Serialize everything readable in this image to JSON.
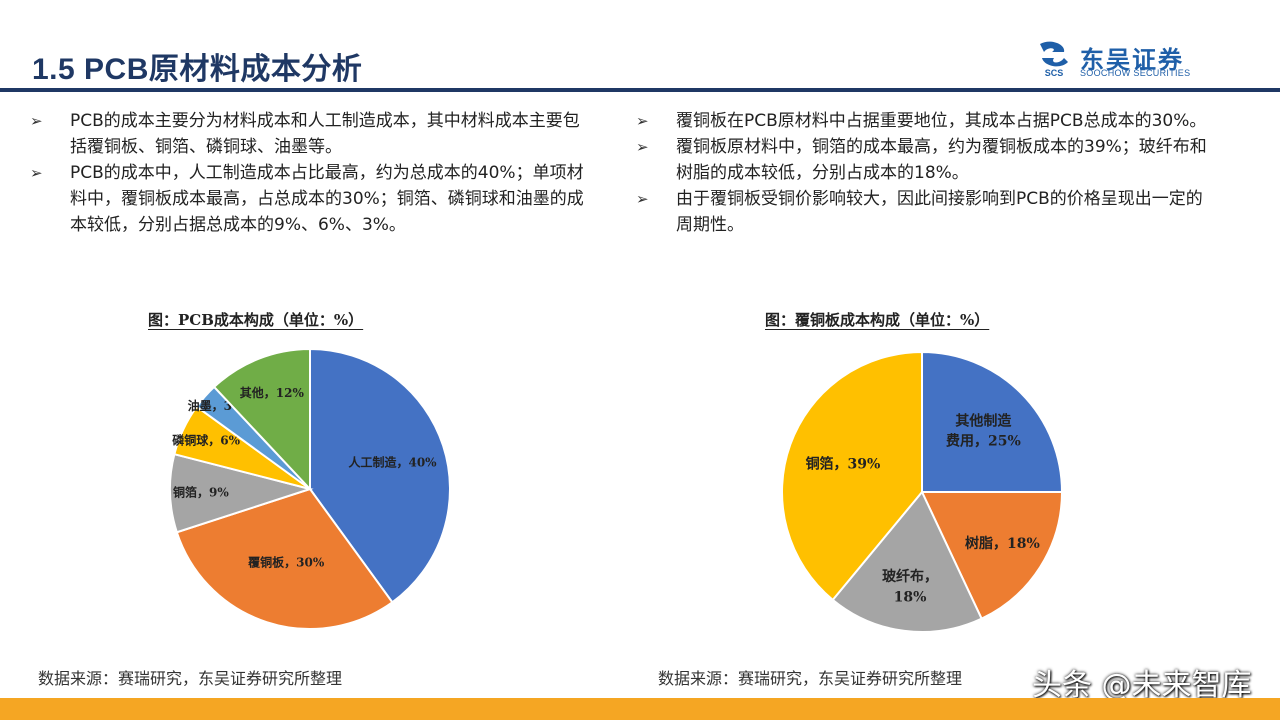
{
  "header": {
    "title": "1.5 PCB原材料成本分析",
    "logo_cn": "东吴证券",
    "logo_en": "SOOCHOW SECURITIES",
    "logo_mark_text": "SCS"
  },
  "bullets_left": [
    "PCB的成本主要分为材料成本和人工制造成本，其中材料成本主要包括覆铜板、铜箔、磷铜球、油墨等。",
    "PCB的成本中，人工制造成本占比最高，约为总成本的40%；单项材料中，覆铜板成本最高，占总成本的30%；铜箔、磷铜球和油墨的成本较低，分别占据总成本的9%、6%、3%。"
  ],
  "bullets_right": [
    "覆铜板在PCB原材料中占据重要地位，其成本占据PCB总成本的30%。",
    "覆铜板原材料中，铜箔的成本最高，约为覆铜板成本的39%；玻纤布和树脂的成本较低，分别占成本的18%。",
    "由于覆铜板受铜价影响较大，因此间接影响到PCB的价格呈现出一定的周期性。"
  ],
  "bullet_marker": "➢",
  "source_left": "数据来源：赛瑞研究，东吴证券研究所整理",
  "source_right": "数据来源：赛瑞研究，东吴证券研究所整理",
  "watermark": "头条 @未来智库",
  "chart_data": [
    {
      "type": "pie",
      "title": "图：PCB成本构成（单位：%）",
      "slices": [
        {
          "label": "人工制造",
          "value": 40,
          "color": "#4472c4",
          "text": "人工制造，40%"
        },
        {
          "label": "覆铜板",
          "value": 30,
          "color": "#ed7d31",
          "text": "覆铜板，30%"
        },
        {
          "label": "铜箔",
          "value": 9,
          "color": "#a5a5a5",
          "text": "铜箔，9%"
        },
        {
          "label": "磷铜球",
          "value": 6,
          "color": "#ffc000",
          "text": "磷铜球，6%"
        },
        {
          "label": "油墨",
          "value": 3,
          "color": "#5b9bd5",
          "text": "油墨，3%"
        },
        {
          "label": "其他",
          "value": 12,
          "color": "#70ad47",
          "text": "其他，12%"
        }
      ]
    },
    {
      "type": "pie",
      "title": "图：覆铜板成本构成（单位：%）",
      "slices": [
        {
          "label": "其他制造费用",
          "value": 25,
          "color": "#4472c4",
          "lines": [
            "其他制造",
            "费用，25%"
          ]
        },
        {
          "label": "树脂",
          "value": 18,
          "color": "#ed7d31",
          "lines": [
            "树脂，18%"
          ]
        },
        {
          "label": "玻纤布",
          "value": 18,
          "color": "#a5a5a5",
          "lines": [
            "玻纤布，",
            "18%"
          ]
        },
        {
          "label": "铜箔",
          "value": 39,
          "color": "#ffc000",
          "lines": [
            "铜箔，39%"
          ]
        }
      ]
    }
  ]
}
